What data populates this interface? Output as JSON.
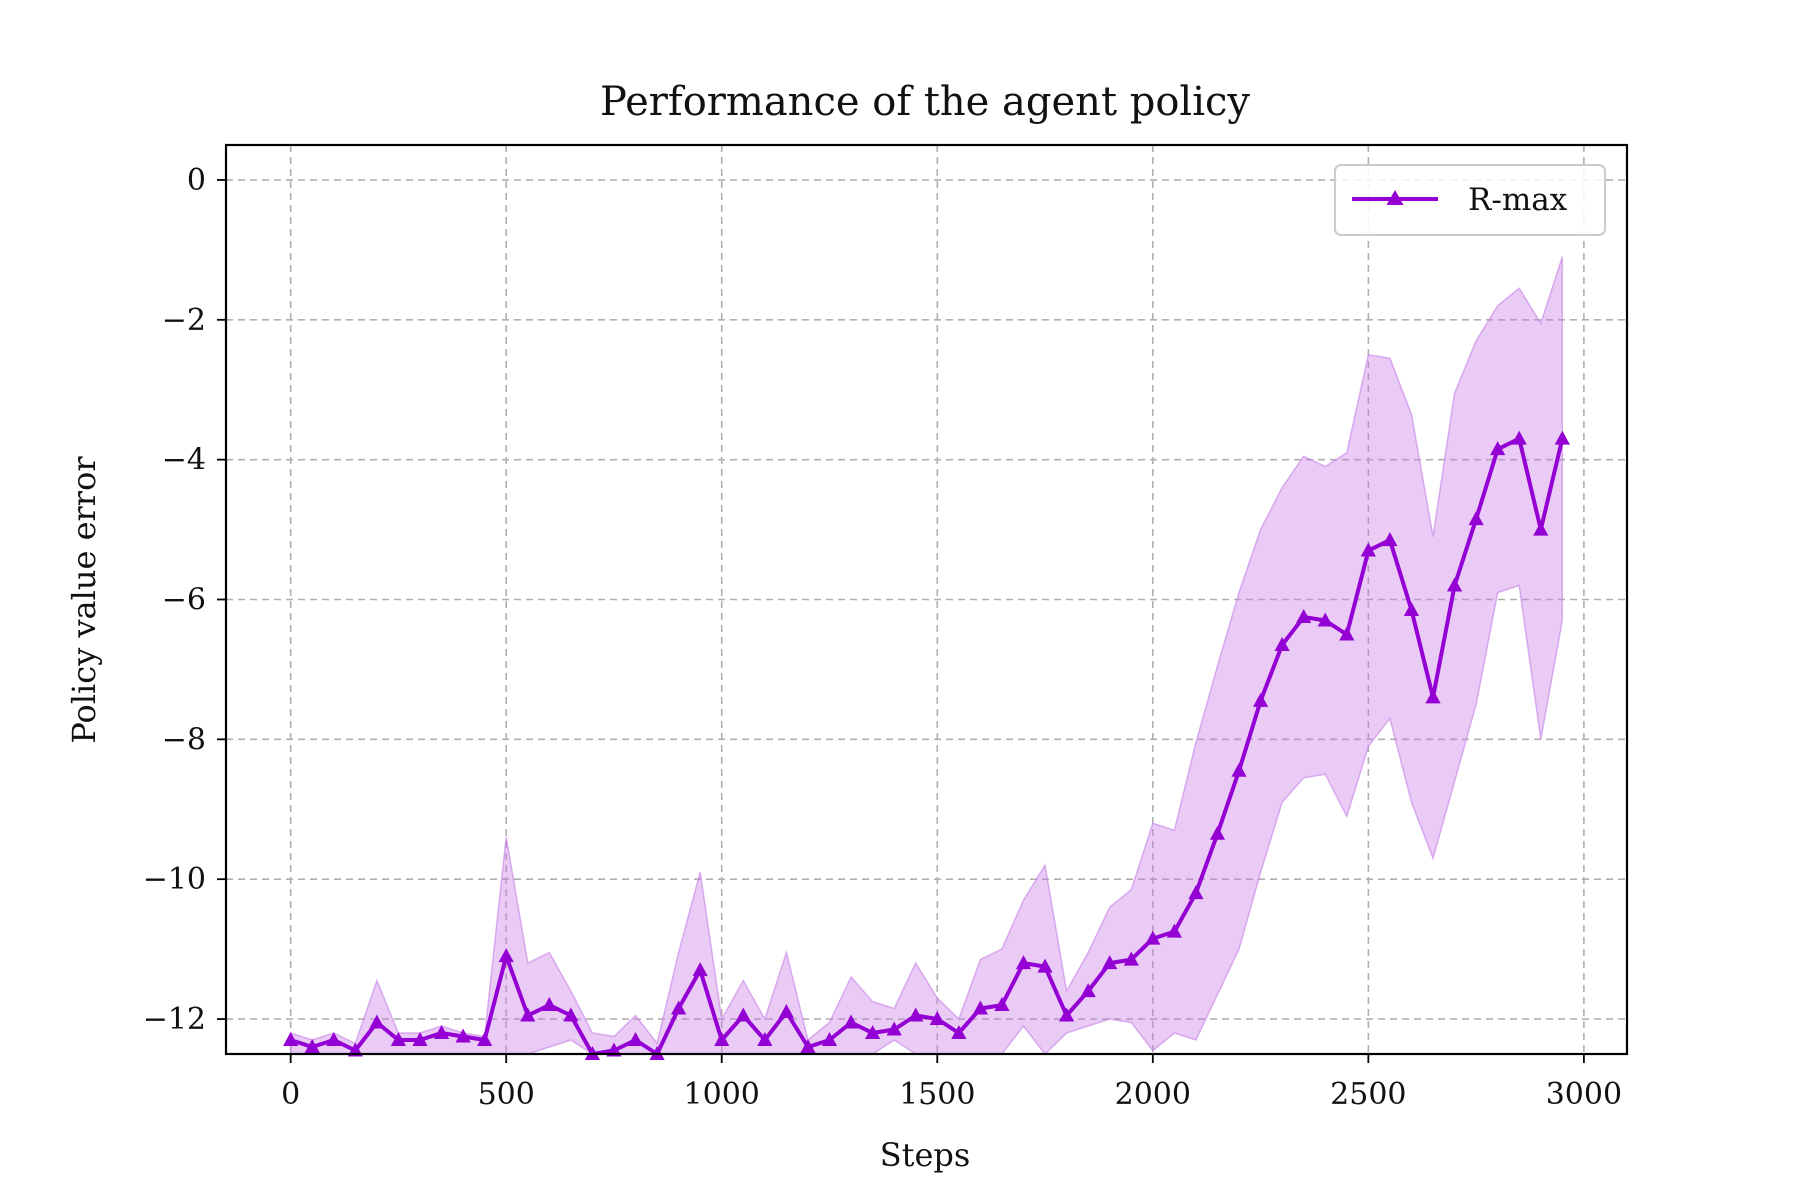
{
  "chart_data": {
    "type": "line",
    "title": "Performance of the agent policy",
    "xlabel": "Steps",
    "ylabel": "Policy value error",
    "xlim": [
      -150,
      3100
    ],
    "ylim": [
      -12.5,
      0.5
    ],
    "xticks": [
      0,
      500,
      1000,
      1500,
      2000,
      2500,
      3000
    ],
    "xtick_labels": [
      "0",
      "500",
      "1000",
      "1500",
      "2000",
      "2500",
      "3000"
    ],
    "yticks": [
      0,
      -2,
      -4,
      -6,
      -8,
      -10,
      -12
    ],
    "ytick_labels": [
      "0",
      "−2",
      "−4",
      "−6",
      "−8",
      "−10",
      "−12"
    ],
    "grid": true,
    "legend_position": "upper-right",
    "colors": {
      "line": "#9400d3",
      "band": "#c77ee8"
    },
    "series": [
      {
        "name": "R-max",
        "marker": "triangle",
        "x": [
          0,
          50,
          100,
          150,
          200,
          250,
          300,
          350,
          400,
          450,
          500,
          550,
          600,
          650,
          700,
          750,
          800,
          850,
          900,
          950,
          1000,
          1050,
          1100,
          1150,
          1200,
          1250,
          1300,
          1350,
          1400,
          1450,
          1500,
          1550,
          1600,
          1650,
          1700,
          1750,
          1800,
          1850,
          1900,
          1950,
          2000,
          2050,
          2100,
          2150,
          2200,
          2250,
          2300,
          2350,
          2400,
          2450,
          2500,
          2550,
          2600,
          2650,
          2700,
          2750,
          2800,
          2850,
          2900,
          2950
        ],
        "y": [
          -12.3,
          -12.4,
          -12.3,
          -12.45,
          -12.05,
          -12.3,
          -12.3,
          -12.2,
          -12.25,
          -12.3,
          -11.1,
          -11.95,
          -11.8,
          -11.95,
          -12.5,
          -12.45,
          -12.3,
          -12.55,
          -11.85,
          -11.3,
          -12.3,
          -11.95,
          -12.3,
          -11.9,
          -12.4,
          -12.3,
          -12.05,
          -12.2,
          -12.15,
          -11.95,
          -12.0,
          -12.2,
          -11.85,
          -11.8,
          -11.2,
          -11.25,
          -11.95,
          -11.6,
          -11.2,
          -11.15,
          -10.85,
          -10.75,
          -10.2,
          -9.35,
          -8.45,
          -7.45,
          -6.65,
          -6.25,
          -6.3,
          -6.5,
          -5.3,
          -5.15,
          -6.15,
          -7.4,
          -5.8,
          -4.85,
          -3.85,
          -3.7,
          -5.0,
          -3.7
        ],
        "lower": [
          -12.5,
          -12.5,
          -12.5,
          -12.5,
          -12.5,
          -12.5,
          -12.5,
          -12.5,
          -12.5,
          -12.5,
          -12.5,
          -12.5,
          -12.4,
          -12.3,
          -12.5,
          -12.5,
          -12.5,
          -12.5,
          -12.5,
          -12.5,
          -12.5,
          -12.5,
          -12.5,
          -12.5,
          -12.5,
          -12.5,
          -12.5,
          -12.5,
          -12.3,
          -12.5,
          -12.5,
          -12.5,
          -12.5,
          -12.5,
          -12.1,
          -12.6,
          -12.2,
          -12.1,
          -12.0,
          -12.05,
          -12.45,
          -12.2,
          -12.3,
          -11.65,
          -11.0,
          -9.9,
          -8.9,
          -8.55,
          -8.5,
          -9.1,
          -8.1,
          -7.7,
          -8.9,
          -9.7,
          -8.6,
          -7.5,
          -5.9,
          -5.8,
          -8.0,
          -6.3
        ],
        "upper": [
          -12.2,
          -12.3,
          -12.2,
          -12.35,
          -11.45,
          -12.2,
          -12.2,
          -12.1,
          -12.2,
          -12.25,
          -9.4,
          -11.2,
          -11.05,
          -11.6,
          -12.2,
          -12.25,
          -11.95,
          -12.35,
          -11.05,
          -9.9,
          -12.0,
          -11.45,
          -12.0,
          -11.05,
          -12.3,
          -12.05,
          -11.4,
          -11.75,
          -11.85,
          -11.2,
          -11.7,
          -12.0,
          -11.15,
          -11.0,
          -10.3,
          -9.8,
          -11.6,
          -11.05,
          -10.4,
          -10.15,
          -9.2,
          -9.3,
          -8.05,
          -6.95,
          -5.9,
          -5.0,
          -4.4,
          -3.95,
          -4.1,
          -3.9,
          -2.5,
          -2.55,
          -3.35,
          -5.1,
          -3.05,
          -2.3,
          -1.8,
          -1.55,
          -2.05,
          -1.1
        ]
      }
    ]
  }
}
